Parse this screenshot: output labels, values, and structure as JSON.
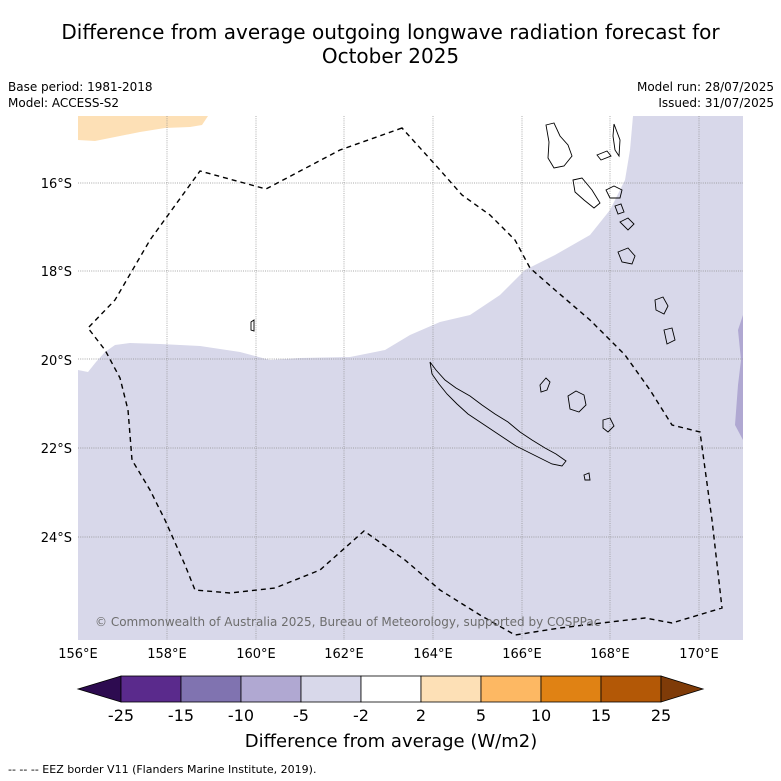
{
  "header": {
    "title_line1": "Difference from average outgoing longwave radiation forecast for",
    "title_line2": "October 2025",
    "base_period": "Base period: 1981-2018",
    "model": "Model: ACCESS-S2",
    "model_run": "Model run: 28/07/2025",
    "issued": "Issued: 31/07/2025"
  },
  "map": {
    "lon_labels": [
      "156°E",
      "158°E",
      "160°E",
      "162°E",
      "164°E",
      "166°E",
      "168°E",
      "170°E"
    ],
    "lat_labels": [
      "16°S",
      "18°S",
      "20°S",
      "22°S",
      "24°S"
    ],
    "copyright": "© Commonwealth of Australia 2025, Bureau of Meteorology, supported by COSPPac",
    "regions": [
      {
        "category": "-5 to -2",
        "color": "#d8d8ea"
      },
      {
        "category": "2 to 5",
        "color": "#fde0b6"
      },
      {
        "category": "-10 to -5",
        "color": "#b0a8d2"
      }
    ]
  },
  "colorbar": {
    "title": "Difference from average (W/m2)",
    "tick_labels": [
      "-25",
      "-15",
      "-10",
      "-5",
      "-2",
      "2",
      "5",
      "10",
      "15",
      "25"
    ],
    "colors": [
      "#2d0b50",
      "#5a2a8c",
      "#8073b0",
      "#b0a8d2",
      "#d8d8ea",
      "#ffffff",
      "#fde0b6",
      "#fdb863",
      "#e08214",
      "#b35806",
      "#7f3b08"
    ]
  },
  "footer": {
    "legend": "--  --  -- EEZ border V11 (Flanders Marine Institute, 2019)."
  }
}
